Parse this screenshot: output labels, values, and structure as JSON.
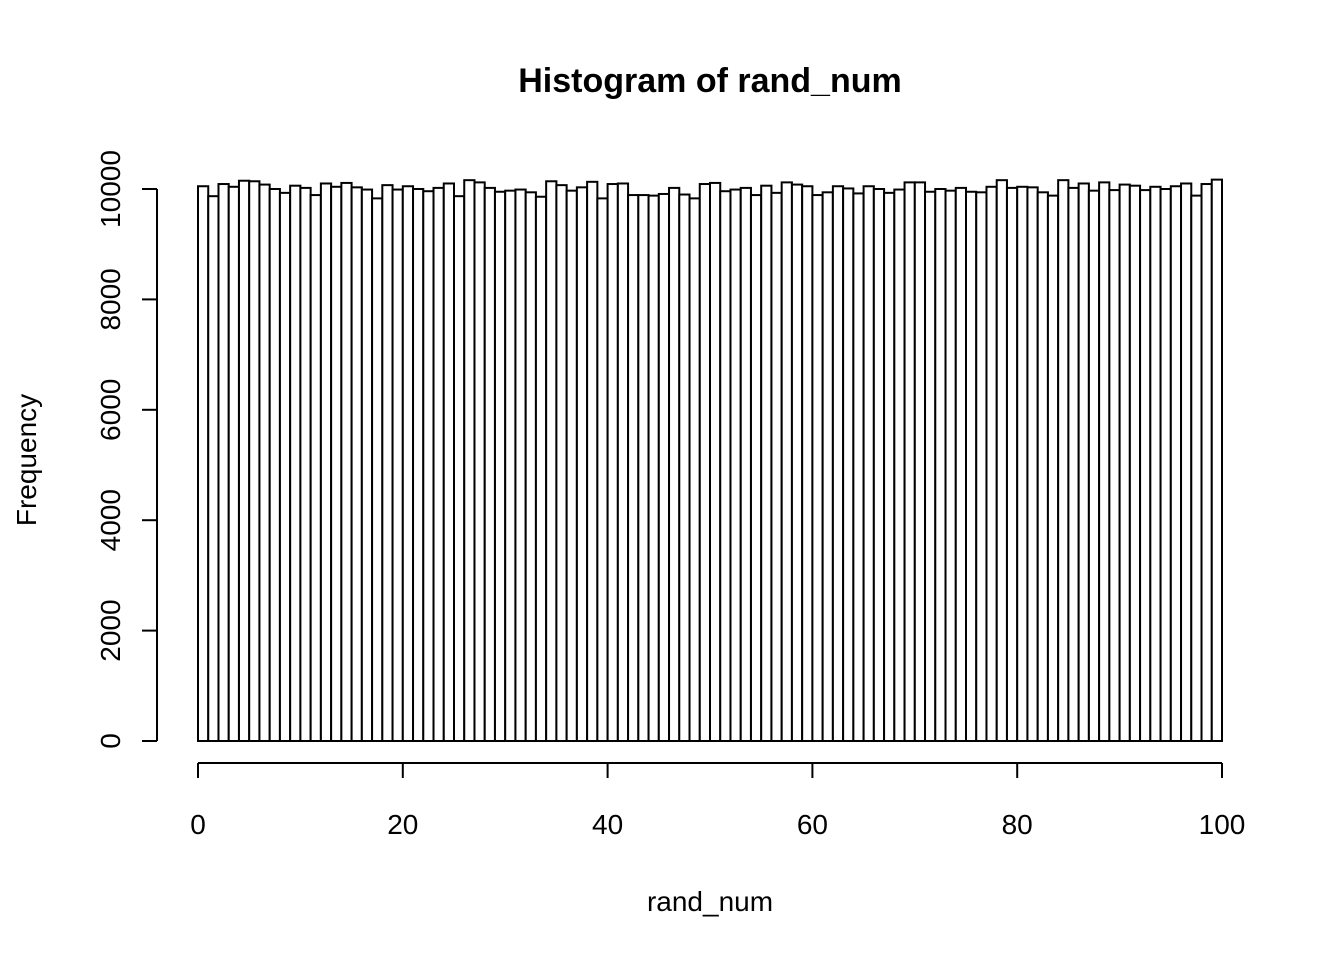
{
  "chart_data": {
    "type": "bar",
    "title": "Histogram of rand_num",
    "xlabel": "rand_num",
    "ylabel": "Frequency",
    "xlim": [
      0,
      100
    ],
    "ylim": [
      0,
      10000
    ],
    "x_ticks": [
      0,
      20,
      40,
      60,
      80,
      100
    ],
    "y_ticks": [
      0,
      2000,
      4000,
      6000,
      8000,
      10000
    ],
    "bin_width": 1,
    "bins_start": 0,
    "values": [
      10050,
      9870,
      10090,
      10040,
      10150,
      10140,
      10080,
      10000,
      9930,
      10060,
      10020,
      9890,
      10100,
      10040,
      10110,
      10030,
      9990,
      9830,
      10070,
      9990,
      10050,
      10000,
      9960,
      10020,
      10100,
      9870,
      10160,
      10120,
      10020,
      9950,
      9970,
      9990,
      9940,
      9860,
      10140,
      10070,
      9970,
      10030,
      10130,
      9830,
      10090,
      10100,
      9890,
      9890,
      9880,
      9910,
      10020,
      9900,
      9830,
      10090,
      10110,
      9960,
      9990,
      10020,
      9890,
      10060,
      9930,
      10120,
      10080,
      10050,
      9890,
      9940,
      10050,
      10010,
      9920,
      10050,
      10000,
      9930,
      9990,
      10120,
      10120,
      9950,
      10000,
      9970,
      10020,
      9950,
      9940,
      10040,
      10160,
      10020,
      10040,
      10030,
      9940,
      9880,
      10160,
      10020,
      10100,
      9970,
      10120,
      9980,
      10080,
      10060,
      9980,
      10040,
      10000,
      10050,
      10100,
      9880,
      10090,
      10170
    ],
    "bar_fill": "#ffffff",
    "bar_stroke": "#000000",
    "background": "#ffffff"
  }
}
